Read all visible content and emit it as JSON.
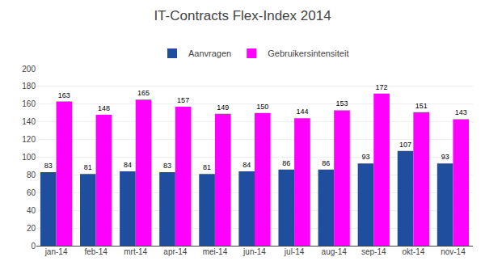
{
  "chart_data": {
    "type": "bar",
    "title": "IT-Contracts Flex-Index 2014",
    "categories": [
      "jan-14",
      "feb-14",
      "mrt-14",
      "apr-14",
      "mei-14",
      "jun-14",
      "jul-14",
      "aug-14",
      "sep-14",
      "okt-14",
      "nov-14"
    ],
    "series": [
      {
        "name": "Aanvragen",
        "color": "#1f4e9e",
        "values": [
          83,
          81,
          84,
          83,
          81,
          84,
          86,
          86,
          93,
          107,
          93
        ]
      },
      {
        "name": "Gebruikersintensiteit",
        "color": "#ff00ff",
        "values": [
          163,
          148,
          165,
          157,
          149,
          150,
          144,
          153,
          172,
          151,
          143
        ]
      }
    ],
    "ylim": [
      0,
      200
    ],
    "yticks": [
      0,
      20,
      40,
      60,
      80,
      100,
      120,
      140,
      160,
      180,
      200
    ],
    "grid": true,
    "legend": "top",
    "data_labels": true
  }
}
